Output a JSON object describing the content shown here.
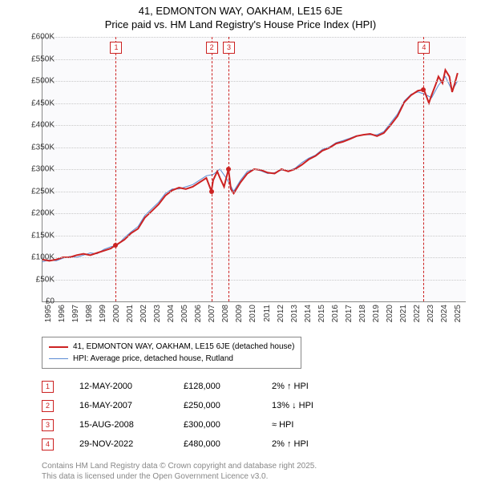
{
  "title_line1": "41, EDMONTON WAY, OAKHAM, LE15 6JE",
  "title_line2": "Price paid vs. HM Land Registry's House Price Index (HPI)",
  "chart": {
    "type": "line",
    "background_color": "#fafafc",
    "grid_color": "#c8c8c8",
    "ylim": [
      0,
      600000
    ],
    "ytick_step": 50000,
    "yticklabels": [
      "£0",
      "£50K",
      "£100K",
      "£150K",
      "£200K",
      "£250K",
      "£300K",
      "£350K",
      "£400K",
      "£450K",
      "£500K",
      "£550K",
      "£600K"
    ],
    "xlim": [
      1995,
      2026
    ],
    "xticklabels": [
      "1995",
      "1996",
      "1997",
      "1998",
      "1999",
      "2000",
      "2001",
      "2002",
      "2003",
      "2004",
      "2005",
      "2006",
      "2007",
      "2008",
      "2009",
      "2010",
      "2011",
      "2012",
      "2013",
      "2014",
      "2015",
      "2016",
      "2017",
      "2018",
      "2019",
      "2020",
      "2021",
      "2022",
      "2023",
      "2024",
      "2025"
    ],
    "series": [
      {
        "name": "41, EDMONTON WAY, OAKHAM, LE15 6JE (detached house)",
        "color": "#cc2222",
        "width": 2,
        "data": [
          [
            1995,
            95000
          ],
          [
            1995.5,
            92000
          ],
          [
            1996,
            95000
          ],
          [
            1996.5,
            100000
          ],
          [
            1997,
            100000
          ],
          [
            1997.5,
            105000
          ],
          [
            1998,
            108000
          ],
          [
            1998.5,
            105000
          ],
          [
            1999,
            110000
          ],
          [
            1999.5,
            115000
          ],
          [
            2000,
            120000
          ],
          [
            2000.37,
            128000
          ],
          [
            2000.5,
            130000
          ],
          [
            2001,
            140000
          ],
          [
            2001.5,
            155000
          ],
          [
            2002,
            165000
          ],
          [
            2002.5,
            190000
          ],
          [
            2003,
            205000
          ],
          [
            2003.5,
            220000
          ],
          [
            2004,
            240000
          ],
          [
            2004.5,
            252000
          ],
          [
            2005,
            258000
          ],
          [
            2005.5,
            255000
          ],
          [
            2006,
            260000
          ],
          [
            2006.5,
            270000
          ],
          [
            2007,
            280000
          ],
          [
            2007.37,
            250000
          ],
          [
            2007.5,
            275000
          ],
          [
            2007.8,
            295000
          ],
          [
            2008,
            280000
          ],
          [
            2008.3,
            260000
          ],
          [
            2008.62,
            300000
          ],
          [
            2008.8,
            255000
          ],
          [
            2009,
            245000
          ],
          [
            2009.5,
            270000
          ],
          [
            2010,
            290000
          ],
          [
            2010.5,
            300000
          ],
          [
            2011,
            298000
          ],
          [
            2011.5,
            292000
          ],
          [
            2012,
            290000
          ],
          [
            2012.5,
            300000
          ],
          [
            2013,
            295000
          ],
          [
            2013.5,
            300000
          ],
          [
            2014,
            310000
          ],
          [
            2014.5,
            322000
          ],
          [
            2015,
            330000
          ],
          [
            2015.5,
            342000
          ],
          [
            2016,
            348000
          ],
          [
            2016.5,
            358000
          ],
          [
            2017,
            362000
          ],
          [
            2017.5,
            368000
          ],
          [
            2018,
            375000
          ],
          [
            2018.5,
            378000
          ],
          [
            2019,
            380000
          ],
          [
            2019.5,
            375000
          ],
          [
            2020,
            382000
          ],
          [
            2020.5,
            400000
          ],
          [
            2021,
            420000
          ],
          [
            2021.5,
            452000
          ],
          [
            2022,
            468000
          ],
          [
            2022.5,
            478000
          ],
          [
            2022.91,
            480000
          ],
          [
            2023,
            475000
          ],
          [
            2023.3,
            450000
          ],
          [
            2023.5,
            468000
          ],
          [
            2023.8,
            492000
          ],
          [
            2024,
            510000
          ],
          [
            2024.3,
            495000
          ],
          [
            2024.5,
            525000
          ],
          [
            2024.8,
            510000
          ],
          [
            2025,
            475000
          ],
          [
            2025.2,
            495000
          ],
          [
            2025.4,
            518000
          ]
        ],
        "markers": [
          {
            "id": "1",
            "x": 2000.37,
            "y": 128000,
            "date": "12-MAY-2000",
            "price": "£128,000",
            "hpi": "2% ↑ HPI"
          },
          {
            "id": "2",
            "x": 2007.37,
            "y": 250000,
            "date": "16-MAY-2007",
            "price": "£250,000",
            "hpi": "13% ↓ HPI"
          },
          {
            "id": "3",
            "x": 2008.62,
            "y": 300000,
            "date": "15-AUG-2008",
            "price": "£300,000",
            "hpi": "≈ HPI"
          },
          {
            "id": "4",
            "x": 2022.91,
            "y": 480000,
            "date": "29-NOV-2022",
            "price": "£480,000",
            "hpi": "2% ↑ HPI"
          }
        ]
      },
      {
        "name": "HPI: Average price, detached house, Rutland",
        "color": "#5b8bd4",
        "width": 1,
        "data": [
          [
            1995,
            90000
          ],
          [
            1995.5,
            94000
          ],
          [
            1996,
            92000
          ],
          [
            1996.5,
            98000
          ],
          [
            1997,
            102000
          ],
          [
            1997.5,
            100000
          ],
          [
            1998,
            105000
          ],
          [
            1998.5,
            110000
          ],
          [
            1999,
            108000
          ],
          [
            1999.5,
            118000
          ],
          [
            2000,
            124000
          ],
          [
            2000.5,
            128000
          ],
          [
            2001,
            145000
          ],
          [
            2001.5,
            158000
          ],
          [
            2002,
            170000
          ],
          [
            2002.5,
            195000
          ],
          [
            2003,
            210000
          ],
          [
            2003.5,
            225000
          ],
          [
            2004,
            245000
          ],
          [
            2004.5,
            255000
          ],
          [
            2005,
            255000
          ],
          [
            2005.5,
            260000
          ],
          [
            2006,
            265000
          ],
          [
            2006.5,
            275000
          ],
          [
            2007,
            285000
          ],
          [
            2007.5,
            288000
          ],
          [
            2008,
            300000
          ],
          [
            2008.5,
            278000
          ],
          [
            2009,
            250000
          ],
          [
            2009.5,
            275000
          ],
          [
            2010,
            295000
          ],
          [
            2010.5,
            300000
          ],
          [
            2011,
            296000
          ],
          [
            2011.5,
            290000
          ],
          [
            2012,
            292000
          ],
          [
            2012.5,
            298000
          ],
          [
            2013,
            296000
          ],
          [
            2013.5,
            302000
          ],
          [
            2014,
            315000
          ],
          [
            2014.5,
            325000
          ],
          [
            2015,
            332000
          ],
          [
            2015.5,
            345000
          ],
          [
            2016,
            350000
          ],
          [
            2016.5,
            360000
          ],
          [
            2017,
            365000
          ],
          [
            2017.5,
            370000
          ],
          [
            2018,
            376000
          ],
          [
            2018.5,
            378000
          ],
          [
            2019,
            378000
          ],
          [
            2019.5,
            378000
          ],
          [
            2020,
            385000
          ],
          [
            2020.5,
            405000
          ],
          [
            2021,
            425000
          ],
          [
            2021.5,
            455000
          ],
          [
            2022,
            470000
          ],
          [
            2022.5,
            475000
          ],
          [
            2023,
            470000
          ],
          [
            2023.5,
            462000
          ],
          [
            2024,
            490000
          ],
          [
            2024.5,
            510000
          ],
          [
            2025,
            478000
          ],
          [
            2025.4,
            500000
          ]
        ]
      }
    ]
  },
  "legend": {
    "items": [
      {
        "label": "41, EDMONTON WAY, OAKHAM, LE15 6JE (detached house)",
        "color": "#cc2222",
        "width": 2
      },
      {
        "label": "HPI: Average price, detached house, Rutland",
        "color": "#5b8bd4",
        "width": 1
      }
    ]
  },
  "footer_line1": "Contains HM Land Registry data © Crown copyright and database right 2025.",
  "footer_line2": "This data is licensed under the Open Government Licence v3.0."
}
